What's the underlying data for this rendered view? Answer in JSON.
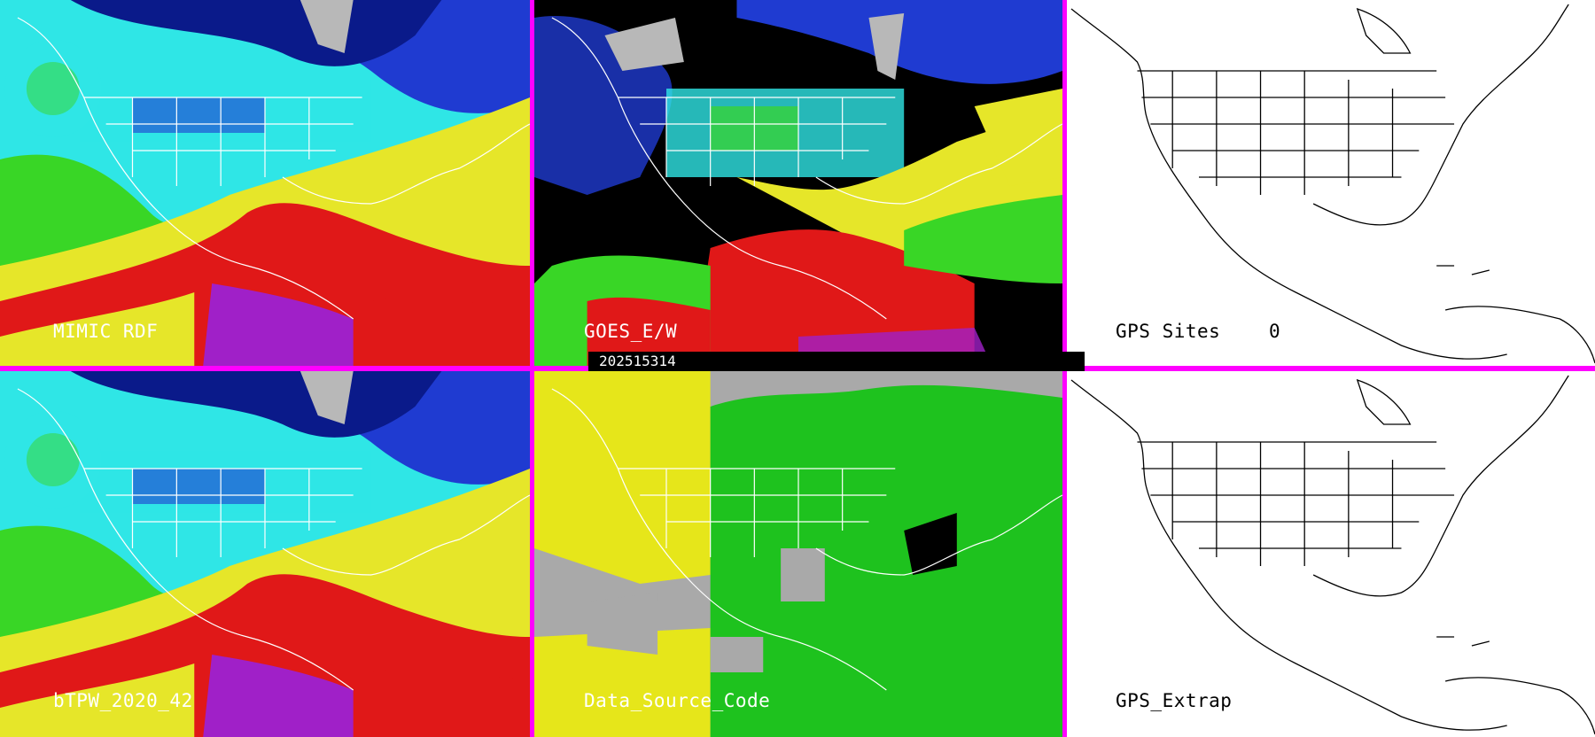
{
  "panels": [
    {
      "id": "mimic",
      "label": "MIMIC RDF",
      "kind": "tpw"
    },
    {
      "id": "goes",
      "label": "GOES_E/W",
      "kind": "goes"
    },
    {
      "id": "gps-sites",
      "label": "GPS Sites",
      "count": "0",
      "kind": "outline"
    },
    {
      "id": "btpw",
      "label": "bTPW_2020_42",
      "kind": "tpw"
    },
    {
      "id": "dsc",
      "label": "Data_Source_Code",
      "kind": "source"
    },
    {
      "id": "gps-extrap",
      "label": "GPS_Extrap",
      "kind": "outline"
    }
  ],
  "timestamp": "202515314",
  "colors": {
    "separator": "#ff00ff",
    "tpw_palette": [
      "#0a1a8a",
      "#1f3bd1",
      "#2fe6e6",
      "#39d626",
      "#e6e629",
      "#e01818",
      "#a020c8",
      "#b8b8b8"
    ],
    "source_palette": [
      "#a9a9a9",
      "#e6e61a",
      "#1ec21e",
      "#000000"
    ]
  },
  "icons": [
    "coastline-outline",
    "state-borders"
  ]
}
